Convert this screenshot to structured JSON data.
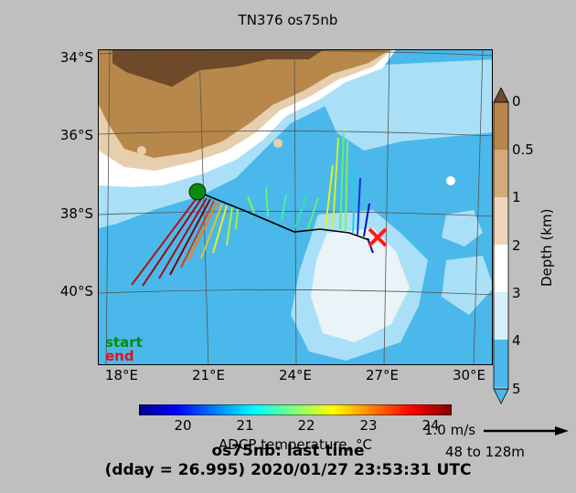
{
  "title": "TN376 os75nb",
  "map": {
    "lat_ticks": [
      "34°S",
      "36°S",
      "38°S",
      "40°S"
    ],
    "lon_ticks": [
      "18°E",
      "21°E",
      "24°E",
      "27°E",
      "30°E"
    ],
    "legend": {
      "start": "start",
      "end": "end"
    },
    "colors": {
      "land_dark": "#6e4a2a",
      "land": "#b8874a",
      "shelf": "#e7cfae",
      "shallow": "#ffffff",
      "mid": "#a9e0f7",
      "deep": "#4ab8ea",
      "start_marker": "#0a8a0a",
      "end_marker": "#ff1a1a",
      "track": "#000000"
    }
  },
  "depth_colorbar": {
    "label": "Depth (km)",
    "ticks": [
      "0",
      "0.5",
      "1",
      "2",
      "3",
      "4",
      "5"
    ],
    "colors": [
      "#b8874a",
      "#d4aa78",
      "#ecd5ba",
      "#ffffff",
      "#d3f0fb",
      "#a9e0f7",
      "#4ab8ea"
    ]
  },
  "sst_colorbar": {
    "label": "ADCP temperature, °C",
    "ticks": [
      "20",
      "21",
      "22",
      "23",
      "24"
    ]
  },
  "scale": {
    "speed": "1.0 m/s",
    "range": "48 to 128m"
  },
  "caption": {
    "line1": "os75nb: last time",
    "line2": "(dday = 26.995) 2020/01/27 23:53:31 UTC"
  }
}
